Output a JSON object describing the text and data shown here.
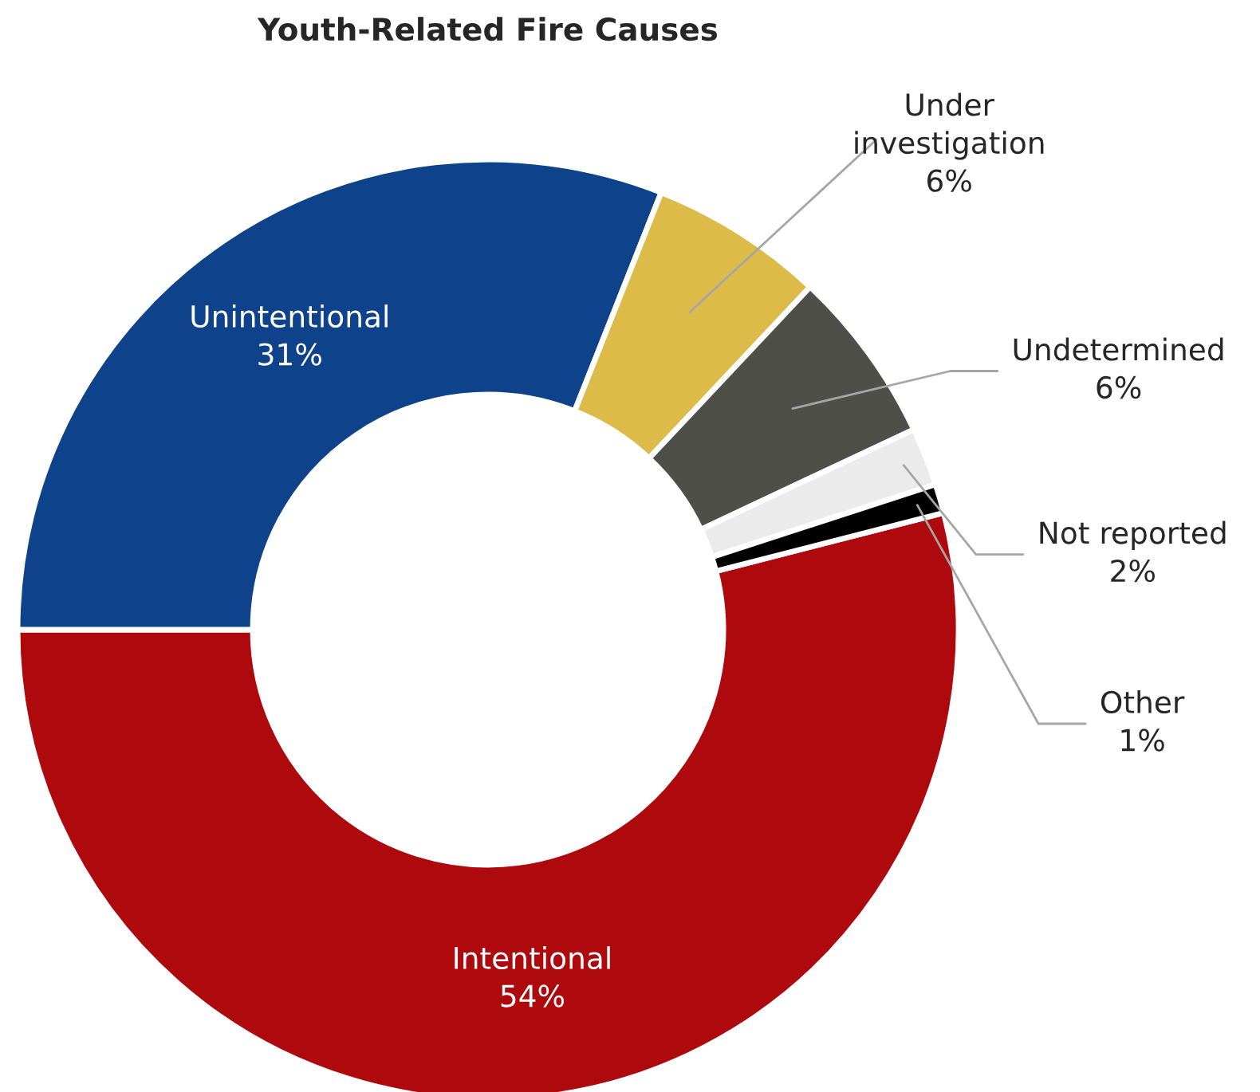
{
  "chart_data": {
    "type": "donut",
    "title": "Youth-Related Fire Causes",
    "categories": [
      "Intentional",
      "Unintentional",
      "Under investigation",
      "Undetermined",
      "Not reported",
      "Other"
    ],
    "values": [
      54,
      31,
      6,
      6,
      2,
      1
    ],
    "value_labels": [
      "54%",
      "31%",
      "6%",
      "6%",
      "2%",
      "1%"
    ],
    "colors": [
      "#ae0a0e",
      "#0e438c",
      "#dcbb48",
      "#4d4f48",
      "#ebebeb",
      "#000000"
    ],
    "data_labels": true,
    "legend": false
  }
}
